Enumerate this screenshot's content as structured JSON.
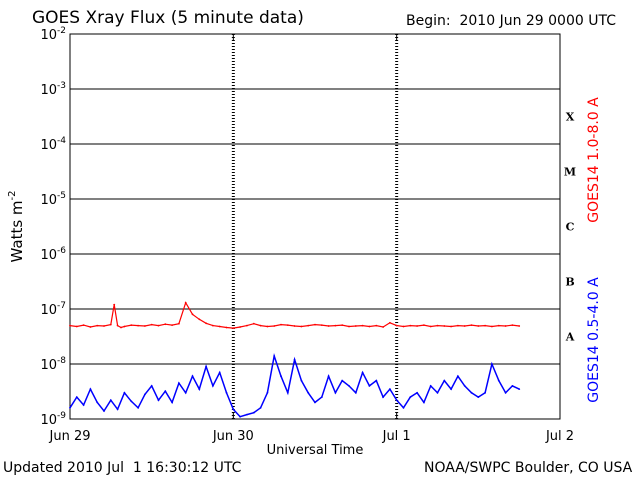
{
  "chart_data": {
    "type": "line",
    "title": "GOES Xray Flux (5 minute data)",
    "begin_label": "Begin:  2010 Jun 29 0000 UTC",
    "xlabel": "Universal Time",
    "ylabel": "Watts m",
    "ylabel_exp": "-2",
    "x_ticks": [
      "Jun 29",
      "Jun 30",
      "Jul 1",
      "Jul 2"
    ],
    "xlim_hours": [
      0,
      72
    ],
    "y_scale": "log",
    "ylim": [
      1e-09,
      0.01
    ],
    "y_ticks": [
      {
        "base": "10",
        "exp": "-2"
      },
      {
        "base": "10",
        "exp": "-3"
      },
      {
        "base": "10",
        "exp": "-4"
      },
      {
        "base": "10",
        "exp": "-5"
      },
      {
        "base": "10",
        "exp": "-6"
      },
      {
        "base": "10",
        "exp": "-7"
      },
      {
        "base": "10",
        "exp": "-8"
      },
      {
        "base": "10",
        "exp": "-9"
      }
    ],
    "flare_classes": [
      "X",
      "M",
      "C",
      "B",
      "A"
    ],
    "series": [
      {
        "name": "GOES14 1.0-8.0 A",
        "color": "#ff0000",
        "x": [
          0,
          1,
          2,
          3,
          4,
          5,
          6,
          6.5,
          7,
          7.5,
          8,
          9,
          10,
          11,
          12,
          13,
          14,
          15,
          16,
          17,
          18,
          19,
          20,
          21,
          22,
          23,
          24,
          25,
          26,
          27,
          28,
          29,
          30,
          31,
          32,
          33,
          34,
          35,
          36,
          37,
          38,
          39,
          40,
          41,
          42,
          43,
          44,
          45,
          46,
          47,
          48,
          49,
          50,
          51,
          52,
          53,
          54,
          55,
          56,
          57,
          58,
          59,
          60,
          61,
          62,
          63,
          64,
          65,
          66
        ],
        "values": [
          5e-08,
          4.8e-08,
          5.1e-08,
          4.7e-08,
          5e-08,
          4.9e-08,
          5.2e-08,
          1.2e-07,
          5e-08,
          4.6e-08,
          4.8e-08,
          5.1e-08,
          5e-08,
          4.9e-08,
          5.2e-08,
          5e-08,
          5.3e-08,
          5.1e-08,
          5.4e-08,
          1.3e-07,
          8e-08,
          6.5e-08,
          5.5e-08,
          5e-08,
          4.8e-08,
          4.6e-08,
          4.5e-08,
          4.7e-08,
          5e-08,
          5.4e-08,
          5e-08,
          4.8e-08,
          4.9e-08,
          5.2e-08,
          5.1e-08,
          4.9e-08,
          4.8e-08,
          5e-08,
          5.2e-08,
          5.1e-08,
          4.9e-08,
          5e-08,
          5.1e-08,
          4.8e-08,
          4.9e-08,
          5e-08,
          4.8e-08,
          5e-08,
          4.7e-08,
          5.6e-08,
          5e-08,
          4.8e-08,
          5e-08,
          4.9e-08,
          5.1e-08,
          4.8e-08,
          5e-08,
          4.9e-08,
          4.8e-08,
          5e-08,
          4.9e-08,
          5.1e-08,
          4.9e-08,
          5e-08,
          4.8e-08,
          5e-08,
          4.9e-08,
          5.1e-08,
          4.9e-08
        ]
      },
      {
        "name": "GOES14 0.5-4.0 A",
        "color": "#0000ff",
        "x": [
          0,
          1,
          2,
          3,
          4,
          5,
          6,
          7,
          8,
          9,
          10,
          11,
          12,
          13,
          14,
          15,
          16,
          17,
          18,
          19,
          20,
          21,
          22,
          23,
          24,
          25,
          26,
          27,
          28,
          29,
          30,
          31,
          32,
          33,
          34,
          35,
          36,
          37,
          38,
          39,
          40,
          41,
          42,
          43,
          44,
          45,
          46,
          47,
          48,
          49,
          50,
          51,
          52,
          53,
          54,
          55,
          56,
          57,
          58,
          59,
          60,
          61,
          62,
          63,
          64,
          65,
          66
        ],
        "values": [
          1.6e-09,
          2.5e-09,
          1.8e-09,
          3.5e-09,
          2e-09,
          1.4e-09,
          2.2e-09,
          1.5e-09,
          3e-09,
          2.1e-09,
          1.6e-09,
          2.8e-09,
          4e-09,
          2.2e-09,
          3.2e-09,
          2e-09,
          4.5e-09,
          3e-09,
          6e-09,
          3.5e-09,
          9e-09,
          4e-09,
          7e-09,
          3e-09,
          1.5e-09,
          1.1e-09,
          1.2e-09,
          1.3e-09,
          1.6e-09,
          3e-09,
          1.4e-08,
          6e-09,
          3e-09,
          1.2e-08,
          5e-09,
          3e-09,
          2e-09,
          2.5e-09,
          6e-09,
          3e-09,
          5e-09,
          4e-09,
          3e-09,
          7e-09,
          4e-09,
          5e-09,
          2.5e-09,
          3.5e-09,
          2.2e-09,
          1.6e-09,
          2.5e-09,
          3e-09,
          2e-09,
          4e-09,
          3e-09,
          5e-09,
          3.5e-09,
          6e-09,
          4e-09,
          3e-09,
          2.5e-09,
          3e-09,
          1e-08,
          5e-09,
          3e-09,
          4e-09,
          3.5e-09
        ]
      }
    ]
  },
  "footer": {
    "updated": "Updated 2010 Jul  1 16:30:12 UTC",
    "source": "NOAA/SWPC Boulder, CO USA"
  }
}
